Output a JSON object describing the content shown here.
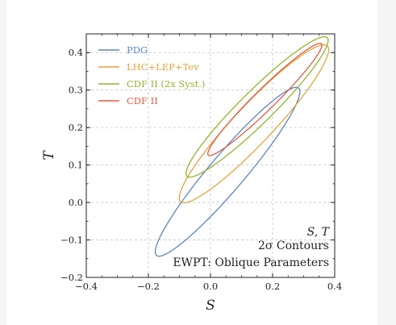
{
  "chart_data": {
    "type": "contour",
    "xlabel": "S",
    "ylabel": "T",
    "xlim": [
      -0.4,
      0.4
    ],
    "ylim": [
      -0.2,
      0.45
    ],
    "x_ticks": [
      "-0.4",
      "-0.2",
      "0.0",
      "0.2",
      "0.4"
    ],
    "y_ticks": [
      "-0.2",
      "-0.1",
      "0.0",
      "0.1",
      "0.2",
      "0.3",
      "0.4"
    ],
    "grid": true,
    "legend_position": "top-left",
    "series": [
      {
        "name": "PDG",
        "color": "#5b84c4",
        "center": [
          0.055,
          0.082
        ],
        "semi_major": 0.32,
        "semi_minor": 0.052,
        "angle_deg": 44.0
      },
      {
        "name": "LHC+LEP+Tev",
        "color": "#e4a43a",
        "center": [
          0.14,
          0.21
        ],
        "semi_major": 0.315,
        "semi_minor": 0.056,
        "angle_deg": 41.0
      },
      {
        "name": "CDF II (2x Syst.)",
        "color": "#94b32e",
        "center": [
          0.15,
          0.255
        ],
        "semi_major": 0.292,
        "semi_minor": 0.047,
        "angle_deg": 39.0
      },
      {
        "name": "CDF II",
        "color": "#e05c42",
        "center": [
          0.175,
          0.275
        ],
        "semi_major": 0.235,
        "semi_minor": 0.03,
        "angle_deg": 39.0
      }
    ],
    "annotations": [
      "S, T",
      "2σ Contours",
      "EWPT: Oblique Parameters"
    ]
  }
}
